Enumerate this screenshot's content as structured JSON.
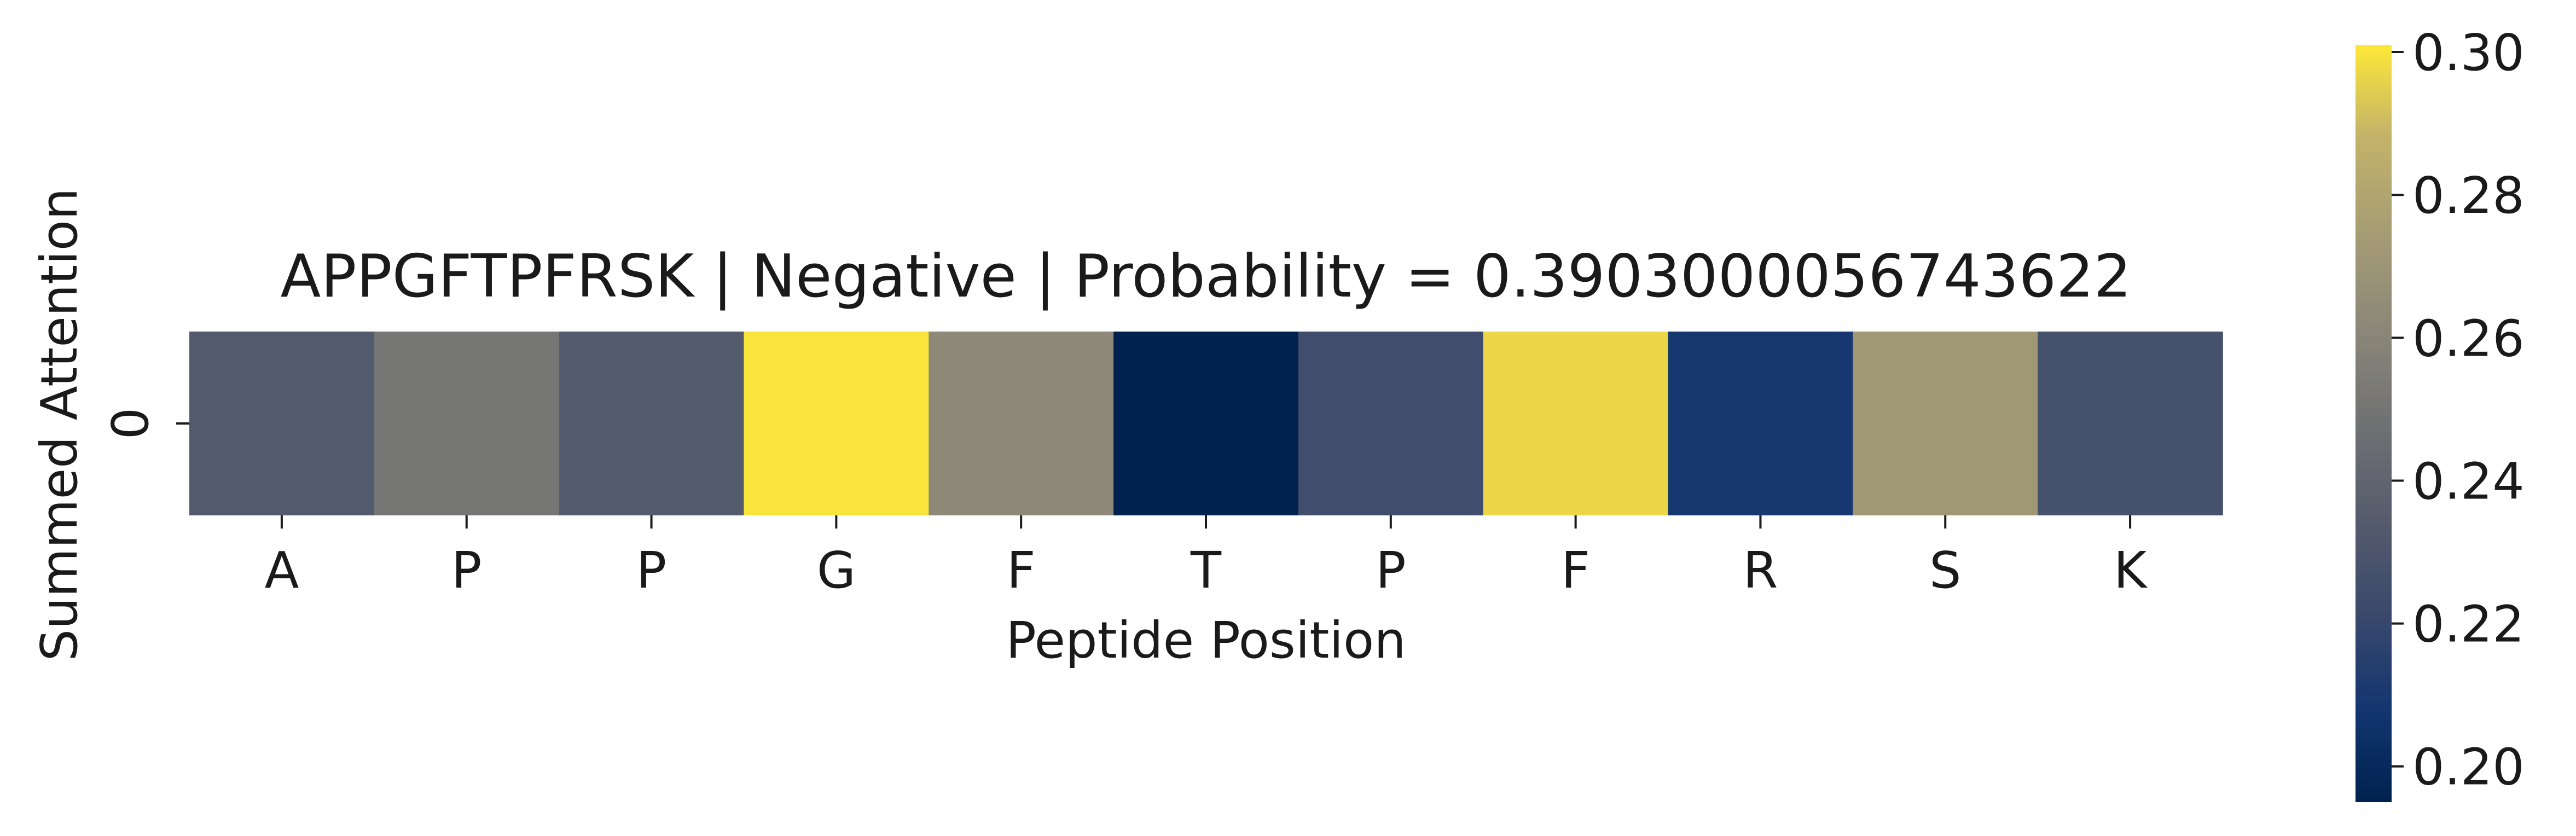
{
  "chart_data": {
    "type": "heatmap",
    "title": "APPGFTPFRSK | Negative | Probability = 0.3903000056743622",
    "xlabel": "Peptide Position",
    "ylabel": "Summed Attention",
    "x_categories": [
      "A",
      "P",
      "P",
      "G",
      "F",
      "T",
      "P",
      "F",
      "R",
      "S",
      "K"
    ],
    "y_categories": [
      "0"
    ],
    "values": [
      [
        0.233,
        0.251,
        0.234,
        0.3,
        0.262,
        0.195,
        0.224,
        0.297,
        0.209,
        0.272,
        0.227
      ]
    ],
    "colormap": "cividis",
    "colorbar": {
      "vmin": 0.195,
      "vmax": 0.301,
      "ticks": [
        0.2,
        0.22,
        0.24,
        0.26,
        0.28,
        0.3
      ],
      "tick_labels": [
        "0.20",
        "0.22",
        "0.24",
        "0.26",
        "0.28",
        "0.30"
      ]
    },
    "grid": false,
    "legend": "none"
  }
}
